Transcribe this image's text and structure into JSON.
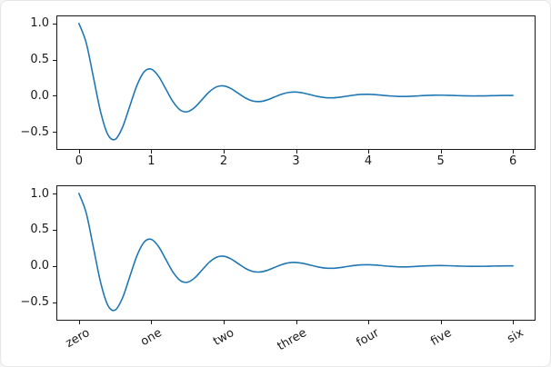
{
  "style": {
    "line_color": "#1f77b4",
    "spine_color": "#1a1a1a",
    "background": "#ffffff",
    "frame_border": "#e6e6e6"
  },
  "chart_data": [
    {
      "type": "line",
      "title": "",
      "xlabel": "",
      "ylabel": "",
      "grid": false,
      "legend": null,
      "line_color": "#1f77b4",
      "xlim": [
        -0.3,
        6.3
      ],
      "ylim": [
        -0.74,
        1.1
      ],
      "x": [
        0,
        0.1,
        0.2,
        0.3,
        0.4,
        0.5,
        0.6,
        0.7,
        0.8,
        0.9,
        1.0,
        1.1,
        1.2,
        1.3,
        1.4,
        1.5,
        1.6,
        1.7,
        1.8,
        1.9,
        2.0,
        2.1,
        2.2,
        2.3,
        2.4,
        2.5,
        2.6,
        2.7,
        2.8,
        2.9,
        3.0,
        3.1,
        3.2,
        3.3,
        3.4,
        3.5,
        3.6,
        3.7,
        3.8,
        3.9,
        4.0,
        4.1,
        4.2,
        4.3,
        4.4,
        4.5,
        4.6,
        4.7,
        4.8,
        4.9,
        5.0,
        5.1,
        5.2,
        5.3,
        5.4,
        5.5,
        5.6,
        5.7,
        5.8,
        5.9,
        6.0
      ],
      "y": [
        1.0,
        0.732,
        0.253,
        -0.2289,
        -0.5423,
        -0.6065,
        -0.444,
        -0.1535,
        0.1389,
        0.3289,
        0.3679,
        0.2693,
        0.0931,
        -0.0842,
        -0.1995,
        -0.2231,
        -0.1633,
        -0.0565,
        0.0511,
        0.121,
        0.1353,
        0.0991,
        0.0342,
        -0.031,
        -0.0734,
        -0.0821,
        -0.0601,
        -0.0208,
        0.0188,
        0.0445,
        0.0498,
        0.0364,
        0.0126,
        -0.0114,
        -0.027,
        -0.0302,
        -0.0221,
        -0.0076,
        0.0069,
        0.0164,
        0.0183,
        0.0134,
        0.0046,
        -0.0042,
        -0.0099,
        -0.0111,
        -0.0081,
        -0.0028,
        0.0025,
        0.006,
        0.0067,
        0.0049,
        0.0017,
        -0.0015,
        -0.0037,
        -0.0041,
        -0.003,
        -0.001,
        0.0009,
        0.0022,
        0.0025
      ],
      "xticks": {
        "values": [
          0,
          1,
          2,
          3,
          4,
          5,
          6
        ],
        "labels": [
          "0",
          "1",
          "2",
          "3",
          "4",
          "5",
          "6"
        ],
        "rotation": 0
      },
      "yticks": {
        "values": [
          1.0,
          0.5,
          0.0,
          -0.5
        ],
        "labels": [
          "1.0",
          "0.5",
          "0.0",
          "−0.5"
        ]
      }
    },
    {
      "type": "line",
      "title": "",
      "xlabel": "",
      "ylabel": "",
      "grid": false,
      "legend": null,
      "line_color": "#1f77b4",
      "xlim": [
        -0.3,
        6.3
      ],
      "ylim": [
        -0.74,
        1.1
      ],
      "x": [
        0,
        0.1,
        0.2,
        0.3,
        0.4,
        0.5,
        0.6,
        0.7,
        0.8,
        0.9,
        1.0,
        1.1,
        1.2,
        1.3,
        1.4,
        1.5,
        1.6,
        1.7,
        1.8,
        1.9,
        2.0,
        2.1,
        2.2,
        2.3,
        2.4,
        2.5,
        2.6,
        2.7,
        2.8,
        2.9,
        3.0,
        3.1,
        3.2,
        3.3,
        3.4,
        3.5,
        3.6,
        3.7,
        3.8,
        3.9,
        4.0,
        4.1,
        4.2,
        4.3,
        4.4,
        4.5,
        4.6,
        4.7,
        4.8,
        4.9,
        5.0,
        5.1,
        5.2,
        5.3,
        5.4,
        5.5,
        5.6,
        5.7,
        5.8,
        5.9,
        6.0
      ],
      "y": [
        1.0,
        0.732,
        0.253,
        -0.2289,
        -0.5423,
        -0.6065,
        -0.444,
        -0.1535,
        0.1389,
        0.3289,
        0.3679,
        0.2693,
        0.0931,
        -0.0842,
        -0.1995,
        -0.2231,
        -0.1633,
        -0.0565,
        0.0511,
        0.121,
        0.1353,
        0.0991,
        0.0342,
        -0.031,
        -0.0734,
        -0.0821,
        -0.0601,
        -0.0208,
        0.0188,
        0.0445,
        0.0498,
        0.0364,
        0.0126,
        -0.0114,
        -0.027,
        -0.0302,
        -0.0221,
        -0.0076,
        0.0069,
        0.0164,
        0.0183,
        0.0134,
        0.0046,
        -0.0042,
        -0.0099,
        -0.0111,
        -0.0081,
        -0.0028,
        0.0025,
        0.006,
        0.0067,
        0.0049,
        0.0017,
        -0.0015,
        -0.0037,
        -0.0041,
        -0.003,
        -0.001,
        0.0009,
        0.0022,
        0.0025
      ],
      "xticks": {
        "values": [
          0,
          1,
          2,
          3,
          4,
          5,
          6
        ],
        "labels": [
          "zero",
          "one",
          "two",
          "three",
          "four",
          "five",
          "six"
        ],
        "rotation": 30
      },
      "yticks": {
        "values": [
          1.0,
          0.5,
          0.0,
          -0.5
        ],
        "labels": [
          "1.0",
          "0.5",
          "0.0",
          "−0.5"
        ]
      }
    }
  ]
}
